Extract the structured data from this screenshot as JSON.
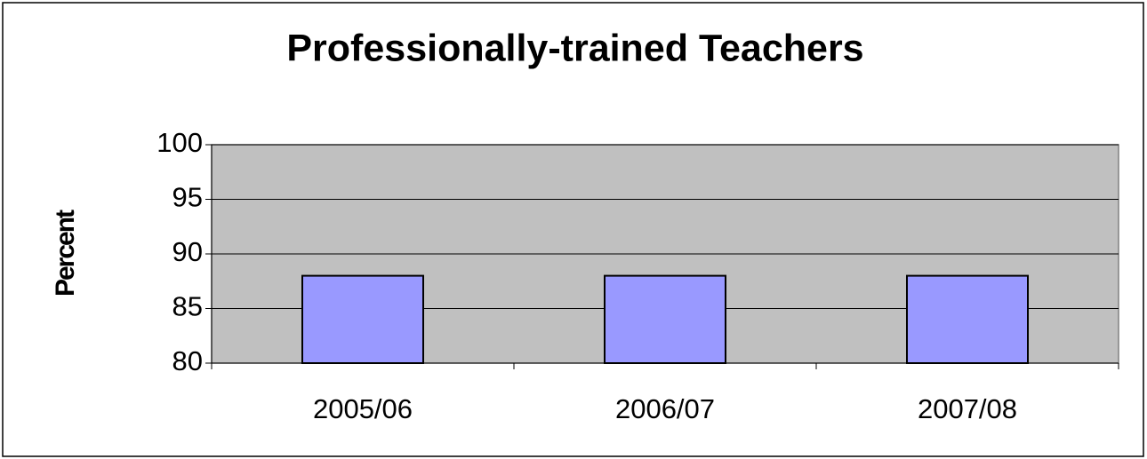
{
  "chart_data": {
    "type": "bar",
    "title": "Professionally-trained Teachers",
    "y_label": "Percent",
    "categories": [
      "2005/06",
      "2006/07",
      "2007/08"
    ],
    "values": [
      88,
      88,
      88
    ],
    "color": "#9999ff",
    "ylim": [
      80,
      100
    ],
    "yticks": [
      80,
      85,
      90,
      95,
      100
    ],
    "grid": true
  }
}
